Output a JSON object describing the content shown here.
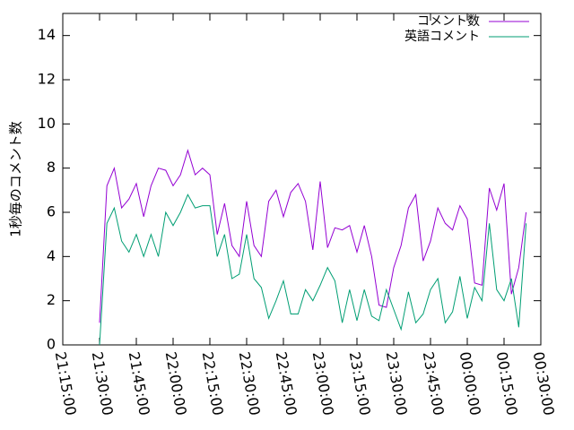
{
  "chart_data": {
    "type": "line",
    "y_label": "1秒毎のコメント数",
    "x": [
      "21:30:00",
      "21:33:00",
      "21:36:00",
      "21:39:00",
      "21:42:00",
      "21:45:00",
      "21:48:00",
      "21:51:00",
      "21:54:00",
      "21:57:00",
      "22:00:00",
      "22:03:00",
      "22:06:00",
      "22:09:00",
      "22:12:00",
      "22:15:00",
      "22:18:00",
      "22:21:00",
      "22:24:00",
      "22:27:00",
      "22:30:00",
      "22:33:00",
      "22:36:00",
      "22:39:00",
      "22:42:00",
      "22:45:00",
      "22:48:00",
      "22:51:00",
      "22:54:00",
      "22:57:00",
      "23:00:00",
      "23:03:00",
      "23:06:00",
      "23:09:00",
      "23:12:00",
      "23:15:00",
      "23:18:00",
      "23:21:00",
      "23:24:00",
      "23:27:00",
      "23:30:00",
      "23:33:00",
      "23:36:00",
      "23:39:00",
      "23:42:00",
      "23:45:00",
      "23:48:00",
      "23:51:00",
      "23:54:00",
      "23:57:00",
      "00:00:00",
      "00:03:00",
      "00:06:00",
      "00:09:00",
      "00:12:00",
      "00:15:00",
      "00:18:00",
      "00:21:00",
      "00:24:00"
    ],
    "series": [
      {
        "name": "コメント数",
        "color": "#9400d3",
        "values": [
          1,
          7.2,
          8.0,
          6.2,
          6.6,
          7.3,
          5.8,
          7.2,
          8.0,
          7.9,
          7.2,
          7.7,
          8.8,
          7.7,
          8.0,
          7.7,
          5.0,
          6.4,
          4.5,
          4.0,
          6.5,
          4.5,
          4.0,
          6.5,
          7.0,
          5.8,
          6.9,
          7.3,
          6.5,
          4.3,
          7.4,
          4.4,
          5.3,
          5.2,
          5.4,
          4.2,
          5.4,
          4.0,
          1.8,
          1.7,
          3.5,
          4.5,
          6.2,
          6.8,
          3.8,
          4.7,
          6.2,
          5.5,
          5.2,
          6.3,
          5.7,
          2.8,
          2.7,
          7.1,
          6.1,
          7.3,
          2.3,
          3.5,
          6.0
        ]
      },
      {
        "name": "英語コメント",
        "color": "#009e73",
        "values": [
          0,
          5.5,
          6.2,
          4.7,
          4.2,
          5.0,
          4.0,
          5.0,
          4.0,
          6.0,
          5.4,
          6.0,
          6.8,
          6.2,
          6.3,
          6.3,
          4.0,
          5.0,
          3.0,
          3.2,
          5.0,
          3.0,
          2.6,
          1.2,
          2.0,
          2.9,
          1.4,
          1.4,
          2.5,
          2.0,
          2.7,
          3.5,
          2.9,
          1.0,
          2.5,
          1.1,
          2.5,
          1.3,
          1.1,
          2.5,
          1.6,
          0.7,
          2.4,
          1.0,
          1.4,
          2.5,
          3.0,
          1.0,
          1.5,
          3.1,
          1.2,
          2.6,
          2.0,
          5.5,
          2.5,
          2.0,
          3.0,
          0.8,
          5.5
        ]
      }
    ],
    "xlim": [
      "21:15:00",
      "00:30:00"
    ],
    "xticks": [
      "21:15:00",
      "21:30:00",
      "21:45:00",
      "22:00:00",
      "22:15:00",
      "22:30:00",
      "22:45:00",
      "23:00:00",
      "23:15:00",
      "23:30:00",
      "23:45:00",
      "00:00:00",
      "00:15:00",
      "00:30:00"
    ],
    "ylim": [
      0,
      15
    ],
    "yticks": [
      0,
      2,
      4,
      6,
      8,
      10,
      12,
      14
    ],
    "legend": "top-right"
  }
}
